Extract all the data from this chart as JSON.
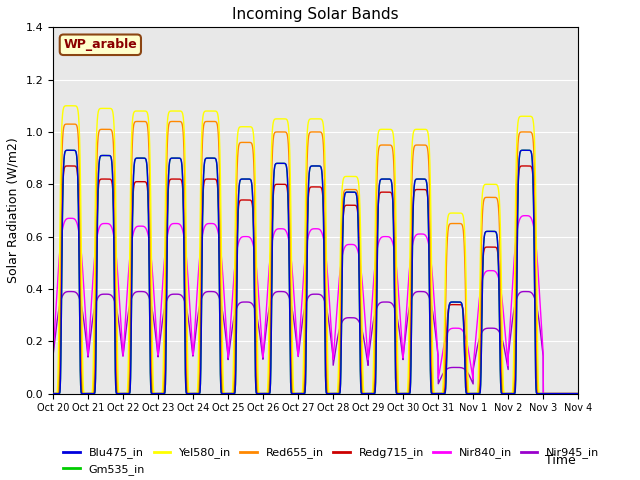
{
  "title": "Incoming Solar Bands",
  "xlabel": "Time",
  "ylabel": "Solar Radiation (W/m2)",
  "location_label": "WP_arable",
  "ylim": [
    0,
    1.4
  ],
  "series": {
    "Blu475_in": {
      "color": "#0000dd",
      "lw": 1.0
    },
    "Gm535_in": {
      "color": "#00cc00",
      "lw": 1.0
    },
    "Yel580_in": {
      "color": "#ffff00",
      "lw": 1.0
    },
    "Red655_in": {
      "color": "#ff8800",
      "lw": 1.0
    },
    "Redg715_in": {
      "color": "#cc0000",
      "lw": 1.0
    },
    "Nir840_in": {
      "color": "#ff00ff",
      "lw": 1.0
    },
    "Nir945_in": {
      "color": "#9900cc",
      "lw": 1.0
    }
  },
  "tick_labels": [
    "Oct 20",
    "Oct 21",
    "Oct 22",
    "Oct 23",
    "Oct 24",
    "Oct 25",
    "Oct 26",
    "Oct 27",
    "Oct 28",
    "Oct 29",
    "Oct 30",
    "Oct 31",
    "Nov 1",
    "Nov 2",
    "Nov 3",
    "Nov 4"
  ],
  "num_days": 15,
  "points_per_day": 200,
  "day_peaks_yel": [
    1.1,
    1.09,
    1.08,
    1.08,
    1.08,
    1.02,
    1.05,
    1.05,
    0.83,
    1.01,
    1.01,
    0.69,
    0.8,
    1.06,
    0.0
  ],
  "day_peaks_red655": [
    1.03,
    1.01,
    1.04,
    1.04,
    1.04,
    0.96,
    1.0,
    1.0,
    0.78,
    0.95,
    0.95,
    0.65,
    0.75,
    1.0,
    0.0
  ],
  "day_peaks_redg715": [
    0.87,
    0.82,
    0.81,
    0.82,
    0.82,
    0.74,
    0.8,
    0.79,
    0.72,
    0.77,
    0.78,
    0.34,
    0.56,
    0.87,
    0.0
  ],
  "day_peaks_nir840": [
    0.67,
    0.65,
    0.64,
    0.65,
    0.65,
    0.6,
    0.63,
    0.63,
    0.57,
    0.6,
    0.61,
    0.25,
    0.47,
    0.68,
    0.0
  ],
  "day_peaks_blu475": [
    0.93,
    0.91,
    0.9,
    0.9,
    0.9,
    0.82,
    0.88,
    0.87,
    0.77,
    0.82,
    0.82,
    0.35,
    0.62,
    0.93,
    0.0
  ],
  "day_peaks_grn535": [
    0.93,
    0.91,
    0.9,
    0.9,
    0.9,
    0.82,
    0.88,
    0.87,
    0.77,
    0.82,
    0.82,
    0.35,
    0.62,
    0.93,
    0.0
  ],
  "day_peaks_nir945": [
    0.39,
    0.38,
    0.39,
    0.38,
    0.39,
    0.35,
    0.39,
    0.38,
    0.29,
    0.35,
    0.39,
    0.1,
    0.25,
    0.39,
    0.0
  ],
  "bg_color": "#e8e8e8",
  "legend_ncol": 6,
  "legend_fontsize": 8
}
